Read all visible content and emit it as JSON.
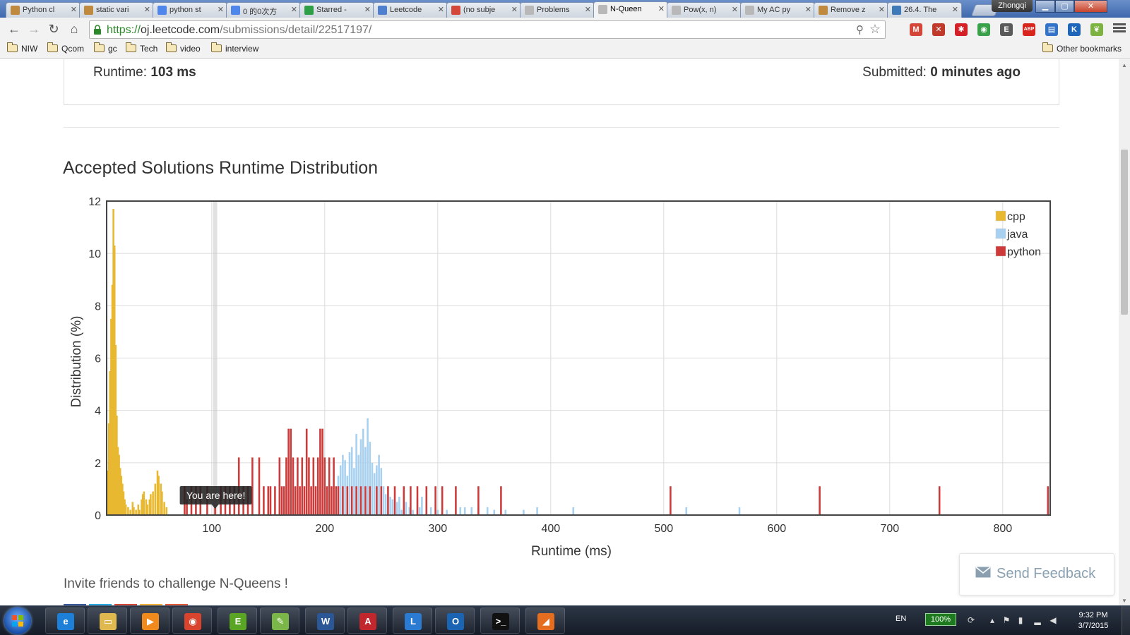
{
  "browser": {
    "tabs": [
      {
        "label": "Python cl",
        "favicon": "#c08a3e",
        "active": false
      },
      {
        "label": "static vari",
        "favicon": "#c08a3e",
        "active": false
      },
      {
        "label": "python st",
        "favicon": "#4f86ec",
        "active": false
      },
      {
        "label": "0 的0次方",
        "favicon": "#4f86ec",
        "active": false
      },
      {
        "label": "Starred -",
        "favicon": "#2e9e47",
        "active": false
      },
      {
        "label": "Leetcode",
        "favicon": "#4f7fcf",
        "active": false
      },
      {
        "label": "(no subje",
        "favicon": "#d44638",
        "active": false
      },
      {
        "label": "Problems",
        "favicon": "#b8b8b8",
        "active": false
      },
      {
        "label": "N-Queen",
        "favicon": "#b8b8b8",
        "active": true
      },
      {
        "label": "Pow(x, n)",
        "favicon": "#b8b8b8",
        "active": false
      },
      {
        "label": "My AC py",
        "favicon": "#b8b8b8",
        "active": false
      },
      {
        "label": "Remove z",
        "favicon": "#c08a3e",
        "active": false
      },
      {
        "label": "26.4. The",
        "favicon": "#3e79b8",
        "active": false
      }
    ],
    "user_name": "Zhongqi",
    "url_scheme": "https://",
    "url_host": "oj.leetcode.com",
    "url_path": "/submissions/detail/22517197/",
    "bookmarks": [
      "NIW",
      "Qcom",
      "gc",
      "Tech",
      "video",
      "interview"
    ],
    "other_bookmarks": "Other bookmarks",
    "extensions": [
      {
        "name": "gmail-icon",
        "text": "M",
        "color": "#d44638"
      },
      {
        "name": "x-extension-icon",
        "text": "✕",
        "color": "#c0392b"
      },
      {
        "name": "puzzle-extension-icon",
        "text": "✱",
        "color": "#d42027"
      },
      {
        "name": "colorful-extension-icon",
        "text": "◉",
        "color": "#3aa14a"
      },
      {
        "name": "evernote-icon",
        "text": "E",
        "color": "#5a5a5a"
      },
      {
        "name": "adblock-icon",
        "text": "ABP",
        "color": "#d8261f"
      },
      {
        "name": "clipboard-extension-icon",
        "text": "▤",
        "color": "#3273c7"
      },
      {
        "name": "k-extension-icon",
        "text": "K",
        "color": "#1f66b8"
      },
      {
        "name": "leaf-extension-icon",
        "text": "❦",
        "color": "#7cb342"
      }
    ]
  },
  "result": {
    "runtime_label": "Runtime:",
    "runtime_value": "103 ms",
    "submitted_label": "Submitted:",
    "submitted_value": "0 minutes ago"
  },
  "section_title": "Accepted Solutions Runtime Distribution",
  "invite_text": "Invite friends to challenge N-Queens !",
  "feedback_label": "Send Feedback",
  "chart_data": {
    "type": "bar",
    "xlabel": "Runtime (ms)",
    "ylabel": "Distribution (%)",
    "xlim": [
      7,
      842
    ],
    "ylim": [
      0,
      12
    ],
    "xticks": [
      100,
      200,
      300,
      400,
      500,
      600,
      700,
      800
    ],
    "yticks": [
      0,
      2,
      4,
      6,
      8,
      10,
      12
    ],
    "grid": true,
    "legend_position": "top-right",
    "tooltip": {
      "text": "You are here!",
      "x": 103
    },
    "highlight_x": 103,
    "series": [
      {
        "name": "cpp",
        "color": "#e8b830",
        "points": [
          [
            8,
            1.7
          ],
          [
            9,
            3.5
          ],
          [
            10,
            5.5
          ],
          [
            11,
            7.5
          ],
          [
            12,
            8.8
          ],
          [
            13,
            11.7
          ],
          [
            14,
            10.3
          ],
          [
            15,
            6.5
          ],
          [
            16,
            3.8
          ],
          [
            17,
            2.6
          ],
          [
            18,
            2.3
          ],
          [
            19,
            1.8
          ],
          [
            20,
            1.5
          ],
          [
            21,
            1.2
          ],
          [
            22,
            0.9
          ],
          [
            23,
            0.6
          ],
          [
            24,
            0.4
          ],
          [
            26,
            0.3
          ],
          [
            28,
            0.2
          ],
          [
            30,
            0.5
          ],
          [
            31,
            0.3
          ],
          [
            33,
            0.2
          ],
          [
            35,
            0.4
          ],
          [
            36,
            0.2
          ],
          [
            38,
            0.6
          ],
          [
            39,
            0.8
          ],
          [
            40,
            0.9
          ],
          [
            42,
            0.6
          ],
          [
            43,
            0.4
          ],
          [
            45,
            0.6
          ],
          [
            46,
            0.8
          ],
          [
            48,
            0.9
          ],
          [
            50,
            1.2
          ],
          [
            52,
            1.7
          ],
          [
            53,
            1.5
          ],
          [
            55,
            1.2
          ],
          [
            56,
            0.9
          ],
          [
            58,
            0.5
          ],
          [
            60,
            0.3
          ]
        ]
      },
      {
        "name": "java",
        "color": "#a8d0f0",
        "points": [
          [
            212,
            1.5
          ],
          [
            214,
            1.9
          ],
          [
            216,
            2.3
          ],
          [
            218,
            2.1
          ],
          [
            220,
            1.5
          ],
          [
            222,
            2.4
          ],
          [
            224,
            2.6
          ],
          [
            226,
            1.8
          ],
          [
            228,
            3.1
          ],
          [
            230,
            2.3
          ],
          [
            232,
            2.9
          ],
          [
            234,
            3.3
          ],
          [
            236,
            2.6
          ],
          [
            238,
            3.7
          ],
          [
            240,
            2.8
          ],
          [
            242,
            2.0
          ],
          [
            244,
            1.6
          ],
          [
            246,
            1.9
          ],
          [
            248,
            2.3
          ],
          [
            250,
            1.8
          ],
          [
            252,
            1.1
          ],
          [
            254,
            0.8
          ],
          [
            258,
            0.7
          ],
          [
            260,
            0.6
          ],
          [
            264,
            0.5
          ],
          [
            266,
            0.7
          ],
          [
            268,
            0.2
          ],
          [
            272,
            0.5
          ],
          [
            275,
            0.3
          ],
          [
            278,
            0.2
          ],
          [
            282,
            0.6
          ],
          [
            284,
            0.3
          ],
          [
            286,
            0.7
          ],
          [
            290,
            0.5
          ],
          [
            294,
            0.3
          ],
          [
            300,
            0.2
          ],
          [
            308,
            0.2
          ],
          [
            320,
            0.3
          ],
          [
            324,
            0.3
          ],
          [
            330,
            0.3
          ],
          [
            336,
            0.3
          ],
          [
            344,
            0.3
          ],
          [
            350,
            0.2
          ],
          [
            360,
            0.2
          ],
          [
            376,
            0.2
          ],
          [
            388,
            0.3
          ],
          [
            420,
            0.3
          ],
          [
            520,
            0.3
          ],
          [
            567,
            0.3
          ]
        ]
      },
      {
        "name": "python",
        "color": "#cc3a3a",
        "points": [
          [
            76,
            1.1
          ],
          [
            78,
            0.6
          ],
          [
            82,
            1.1
          ],
          [
            86,
            1.1
          ],
          [
            90,
            1.1
          ],
          [
            96,
            1.1
          ],
          [
            103,
            0.3
          ],
          [
            108,
            1.1
          ],
          [
            112,
            1.1
          ],
          [
            116,
            1.1
          ],
          [
            120,
            1.1
          ],
          [
            124,
            2.2
          ],
          [
            128,
            1.1
          ],
          [
            132,
            1.1
          ],
          [
            136,
            2.2
          ],
          [
            142,
            2.2
          ],
          [
            146,
            1.1
          ],
          [
            150,
            1.1
          ],
          [
            152,
            1.1
          ],
          [
            156,
            1.1
          ],
          [
            160,
            2.2
          ],
          [
            162,
            1.1
          ],
          [
            164,
            1.1
          ],
          [
            166,
            2.2
          ],
          [
            168,
            3.3
          ],
          [
            170,
            3.3
          ],
          [
            172,
            2.2
          ],
          [
            174,
            1.1
          ],
          [
            176,
            2.2
          ],
          [
            178,
            1.1
          ],
          [
            180,
            2.2
          ],
          [
            182,
            1.1
          ],
          [
            184,
            3.3
          ],
          [
            186,
            2.2
          ],
          [
            188,
            1.1
          ],
          [
            190,
            2.2
          ],
          [
            192,
            1.1
          ],
          [
            194,
            2.2
          ],
          [
            196,
            3.3
          ],
          [
            198,
            3.3
          ],
          [
            200,
            2.2
          ],
          [
            202,
            1.1
          ],
          [
            204,
            2.2
          ],
          [
            206,
            1.1
          ],
          [
            208,
            2.2
          ],
          [
            210,
            1.1
          ],
          [
            212,
            1.1
          ],
          [
            216,
            1.1
          ],
          [
            220,
            1.1
          ],
          [
            224,
            1.1
          ],
          [
            228,
            1.1
          ],
          [
            232,
            1.1
          ],
          [
            236,
            1.1
          ],
          [
            240,
            1.1
          ],
          [
            246,
            1.1
          ],
          [
            250,
            1.1
          ],
          [
            256,
            1.1
          ],
          [
            262,
            1.1
          ],
          [
            270,
            1.1
          ],
          [
            276,
            1.1
          ],
          [
            282,
            1.1
          ],
          [
            290,
            1.1
          ],
          [
            298,
            1.1
          ],
          [
            304,
            1.1
          ],
          [
            316,
            1.1
          ],
          [
            336,
            1.1
          ],
          [
            356,
            1.1
          ],
          [
            506,
            1.1
          ],
          [
            638,
            1.1
          ],
          [
            744,
            1.1
          ],
          [
            840,
            1.1
          ]
        ]
      }
    ]
  },
  "taskbar": {
    "apps": [
      {
        "name": "ie-icon",
        "text": "e",
        "color": "#1e7fd8"
      },
      {
        "name": "explorer-icon",
        "text": "▭",
        "color": "#e0b850"
      },
      {
        "name": "media-player-icon",
        "text": "▶",
        "color": "#f08a1c"
      },
      {
        "name": "chrome-icon",
        "text": "◉",
        "color": "#d9442f"
      },
      {
        "name": "evernote-icon",
        "text": "E",
        "color": "#5ba525"
      },
      {
        "name": "notepad-icon",
        "text": "✎",
        "color": "#7ab648"
      },
      {
        "name": "word-icon",
        "text": "W",
        "color": "#2b5797"
      },
      {
        "name": "acrobat-icon",
        "text": "A",
        "color": "#c1272d"
      },
      {
        "name": "lync-icon",
        "text": "L",
        "color": "#2a7bd1"
      },
      {
        "name": "outlook-icon",
        "text": "O",
        "color": "#1b64b3"
      },
      {
        "name": "cmd-icon",
        "text": ">_",
        "color": "#111111"
      },
      {
        "name": "matlab-icon",
        "text": "◢",
        "color": "#e56d1f"
      }
    ],
    "language": "EN",
    "battery": "100%",
    "time": "9:32 PM",
    "date": "3/7/2015"
  }
}
